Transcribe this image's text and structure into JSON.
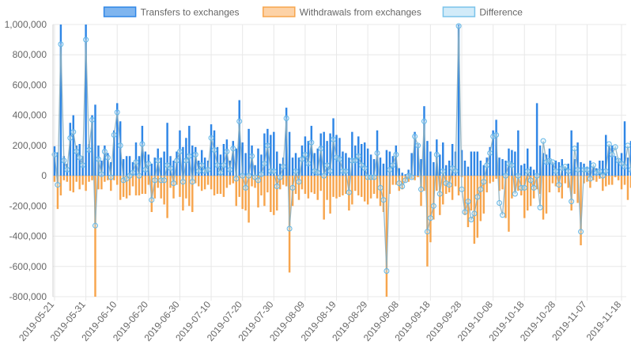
{
  "chart_data": {
    "type": "bar",
    "title": "",
    "xlabel": "",
    "ylabel": "",
    "ylim": [
      -800000,
      1000000
    ],
    "yticks": [
      1000000,
      800000,
      600000,
      400000,
      200000,
      0,
      -200000,
      -400000,
      -600000,
      -800000
    ],
    "ytick_labels": [
      "1,000,000",
      "800,000",
      "600,000",
      "400,000",
      "200,000",
      "0",
      "-200,000",
      "-400,000",
      "-600,000",
      "-800,000"
    ],
    "x_tick_labels": [
      "2019-05-21",
      "2019-05-31",
      "2019-06-10",
      "2019-06-20",
      "2019-06-30",
      "2019-07-10",
      "2019-07-20",
      "2019-07-30",
      "2019-08-09",
      "2019-08-19",
      "2019-08-29",
      "2019-09-08",
      "2019-09-18",
      "2019-09-28",
      "2019-10-08",
      "2019-10-18",
      "2019-10-28",
      "2019-11-07",
      "2019-11-18"
    ],
    "x_tick_index": [
      0,
      10,
      20,
      30,
      40,
      50,
      60,
      70,
      80,
      90,
      100,
      110,
      120,
      130,
      140,
      150,
      160,
      170,
      181
    ],
    "n_days": 183,
    "legend_position": "top",
    "grid": true,
    "legend": [
      {
        "name": "Transfers to exchanges",
        "fill": "#7fb5ef",
        "stroke": "#2f86e6"
      },
      {
        "name": "Withdrawals from exchanges",
        "fill": "#fdd2a6",
        "stroke": "#f7a54d"
      },
      {
        "name": "Difference",
        "fill": "#d2ebf9",
        "stroke": "#7ac3ea"
      }
    ],
    "colors": {
      "transfers": "#2f86e6",
      "withdrawals": "#f7a54d",
      "difference_line": "#8aaebf",
      "difference_point": "#62b6e6",
      "grid": "#e8e8e8",
      "axis_text": "#666666"
    },
    "series": [
      {
        "name": "Transfers to exchanges",
        "values": [
          195000,
          155000,
          1000000,
          130000,
          80000,
          350000,
          400000,
          200000,
          210000,
          130000,
          1000000,
          210000,
          400000,
          470000,
          200000,
          100000,
          200000,
          150000,
          90000,
          300000,
          480000,
          360000,
          110000,
          130000,
          130000,
          90000,
          220000,
          130000,
          330000,
          160000,
          140000,
          80000,
          120000,
          180000,
          120000,
          160000,
          350000,
          130000,
          100000,
          160000,
          300000,
          190000,
          250000,
          330000,
          200000,
          190000,
          100000,
          170000,
          120000,
          100000,
          340000,
          300000,
          190000,
          140000,
          210000,
          240000,
          100000,
          230000,
          180000,
          500000,
          220000,
          150000,
          310000,
          200000,
          70000,
          180000,
          140000,
          280000,
          310000,
          270000,
          290000,
          160000,
          80000,
          120000,
          450000,
          290000,
          120000,
          150000,
          120000,
          200000,
          260000,
          230000,
          330000,
          150000,
          180000,
          280000,
          290000,
          230000,
          280000,
          380000,
          270000,
          250000,
          160000,
          150000,
          120000,
          290000,
          200000,
          260000,
          210000,
          220000,
          180000,
          140000,
          110000,
          300000,
          120000,
          80000,
          170000,
          160000,
          130000,
          200000,
          50000,
          20000,
          10000,
          40000,
          150000,
          290000,
          210000,
          110000,
          460000,
          230000,
          160000,
          90000,
          240000,
          140000,
          220000,
          70000,
          100000,
          210000,
          160000,
          1000000,
          170000,
          100000,
          60000,
          160000,
          160000,
          160000,
          100000,
          70000,
          120000,
          190000,
          300000,
          370000,
          120000,
          110000,
          100000,
          180000,
          170000,
          160000,
          300000,
          70000,
          80000,
          180000,
          60000,
          40000,
          480000,
          200000,
          150000,
          140000,
          180000,
          90000,
          100000,
          90000,
          110000,
          60000,
          80000,
          300000,
          110000,
          220000,
          90000,
          80000,
          60000,
          100000,
          60000,
          50000,
          100000,
          100000,
          270000,
          200000,
          200000,
          130000,
          110000,
          150000,
          360000,
          120000,
          230000,
          240000,
          180000
        ]
      },
      {
        "name": "Withdrawals from exchanges",
        "values": [
          -40000,
          -220000,
          -130000,
          -30000,
          -40000,
          -100000,
          -110000,
          -40000,
          -90000,
          -60000,
          -100000,
          -40000,
          -30000,
          -800000,
          -90000,
          -90000,
          -40000,
          -30000,
          -100000,
          -30000,
          -60000,
          -160000,
          -140000,
          -150000,
          -130000,
          -70000,
          -130000,
          -130000,
          -120000,
          -120000,
          -60000,
          -240000,
          -150000,
          -80000,
          -150000,
          -190000,
          -280000,
          -80000,
          -150000,
          -60000,
          -140000,
          -230000,
          -150000,
          -200000,
          -240000,
          -50000,
          -70000,
          -100000,
          -90000,
          -60000,
          -90000,
          -130000,
          -120000,
          -120000,
          -140000,
          -80000,
          -60000,
          -50000,
          -200000,
          -140000,
          -220000,
          -230000,
          -310000,
          -70000,
          -80000,
          -210000,
          -130000,
          -200000,
          -110000,
          -240000,
          -260000,
          -230000,
          -90000,
          -60000,
          -70000,
          -640000,
          -200000,
          -120000,
          -160000,
          -90000,
          -120000,
          -150000,
          -110000,
          -120000,
          -160000,
          -100000,
          -290000,
          -160000,
          -250000,
          -140000,
          -150000,
          -140000,
          -130000,
          -120000,
          -230000,
          -190000,
          -100000,
          -130000,
          -140000,
          -170000,
          -190000,
          -150000,
          -120000,
          -150000,
          -200000,
          -240000,
          -800000,
          -120000,
          -60000,
          -60000,
          -100000,
          -90000,
          -40000,
          -40000,
          -20000,
          -30000,
          -10000,
          -200000,
          -100000,
          -600000,
          -440000,
          -290000,
          -100000,
          -260000,
          -190000,
          -120000,
          -110000,
          -160000,
          -70000,
          -130000,
          -10000,
          -260000,
          -340000,
          -230000,
          -450000,
          -410000,
          -300000,
          -250000,
          -110000,
          -50000,
          -40000,
          -20000,
          -100000,
          -90000,
          -280000,
          -370000,
          -150000,
          -100000,
          -100000,
          -130000,
          -280000,
          -230000,
          -200000,
          -150000,
          -90000,
          -120000,
          -290000,
          -250000,
          -110000,
          -50000,
          -70000,
          -110000,
          -150000,
          -50000,
          -80000,
          -230000,
          -120000,
          -180000,
          -460000,
          -50000,
          -40000,
          -80000,
          -30000,
          -40000,
          -20000,
          -100000,
          -70000,
          -60000,
          -60000,
          -10000,
          -30000,
          -90000,
          -60000,
          -160000,
          -80000,
          -70000,
          -40000,
          -30000
        ]
      },
      {
        "name": "Difference",
        "values": [
          140000,
          -60000,
          870000,
          100000,
          40000,
          250000,
          290000,
          160000,
          120000,
          70000,
          900000,
          170000,
          370000,
          -330000,
          110000,
          10000,
          160000,
          120000,
          -10000,
          270000,
          420000,
          200000,
          -30000,
          -20000,
          0,
          20000,
          90000,
          0,
          210000,
          40000,
          80000,
          -160000,
          -30000,
          100000,
          -30000,
          -30000,
          70000,
          50000,
          -50000,
          100000,
          160000,
          -40000,
          100000,
          130000,
          -40000,
          140000,
          30000,
          70000,
          30000,
          40000,
          250000,
          170000,
          70000,
          20000,
          70000,
          160000,
          40000,
          180000,
          -20000,
          360000,
          0,
          -80000,
          0,
          130000,
          -10000,
          -30000,
          10000,
          80000,
          200000,
          30000,
          30000,
          -70000,
          -10000,
          60000,
          380000,
          -350000,
          -80000,
          30000,
          -40000,
          110000,
          140000,
          80000,
          220000,
          30000,
          20000,
          180000,
          0,
          70000,
          30000,
          240000,
          120000,
          110000,
          30000,
          30000,
          -110000,
          100000,
          100000,
          130000,
          70000,
          50000,
          -10000,
          -10000,
          -10000,
          150000,
          -80000,
          -160000,
          -630000,
          40000,
          70000,
          140000,
          -50000,
          -70000,
          -30000,
          0,
          -10000,
          260000,
          200000,
          -90000,
          360000,
          -370000,
          -280000,
          -200000,
          140000,
          -120000,
          30000,
          -50000,
          -60000,
          50000,
          30000,
          990000,
          -90000,
          -240000,
          -170000,
          -290000,
          -250000,
          -140000,
          -90000,
          -40000,
          70000,
          150000,
          260000,
          270000,
          -180000,
          -260000,
          0,
          80000,
          70000,
          -120000,
          0,
          -80000,
          -80000,
          30000,
          -30000,
          -80000,
          0,
          -210000,
          230000,
          90000,
          100000,
          90000,
          30000,
          -60000,
          50000,
          60000,
          30000,
          -170000,
          180000,
          40000,
          -370000,
          40000,
          40000,
          -20000,
          70000,
          20000,
          30000,
          0,
          30000,
          210000,
          140000,
          190000,
          100000,
          80000,
          60000,
          200000,
          40000,
          160000,
          200000,
          150000
        ]
      }
    ]
  }
}
